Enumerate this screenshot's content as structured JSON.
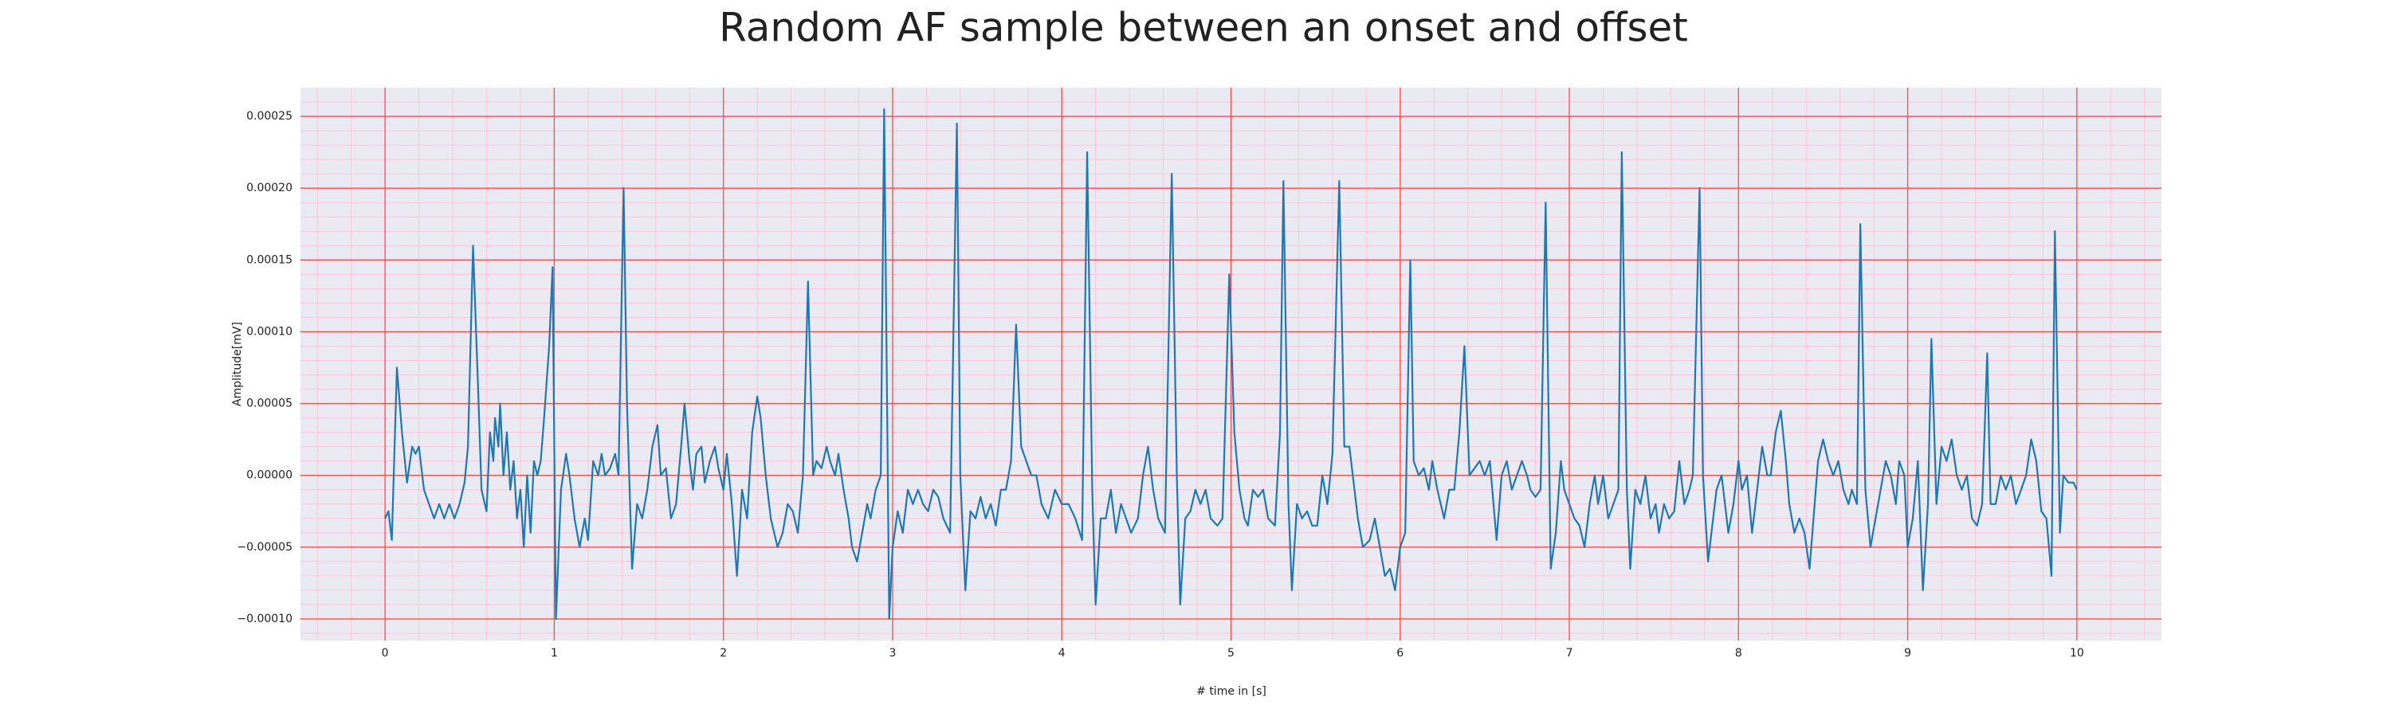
{
  "chart_data": {
    "type": "line",
    "title": "Random AF sample between an onset and offset",
    "xlabel": "# time in [s]",
    "ylabel": "Amplitude[mV]",
    "color": "#1f77b4",
    "background": "#eaeaf2",
    "grid": true,
    "grid_color": "#ff4a4a",
    "minor_grid": true,
    "minor_grid_color": "#ffc8d6",
    "xlim": [
      -0.5,
      10.5
    ],
    "xticks": [
      0,
      1,
      2,
      3,
      4,
      5,
      6,
      7,
      8,
      9,
      10
    ],
    "ylim": [
      -0.000115,
      0.00027
    ],
    "yticks": [
      {
        "value": -0.0001,
        "label": "−0.00010"
      },
      {
        "value": -5e-05,
        "label": "−0.00005"
      },
      {
        "value": 0,
        "label": "0.00000"
      },
      {
        "value": 5e-05,
        "label": "0.00005"
      },
      {
        "value": 0.0001,
        "label": "0.00010"
      },
      {
        "value": 0.00015,
        "label": "0.00015"
      },
      {
        "value": 0.0002,
        "label": "0.00020"
      },
      {
        "value": 0.00025,
        "label": "0.00025"
      }
    ],
    "xminorticks": [
      -0.4,
      -0.2,
      0.2,
      0.4,
      0.6,
      0.8,
      1.2,
      1.4,
      1.6,
      1.8,
      2.2,
      2.4,
      2.6,
      2.8,
      3.2,
      3.4,
      3.6,
      3.8,
      4.2,
      4.4,
      4.6,
      4.8,
      5.2,
      5.4,
      5.6,
      5.8,
      6.2,
      6.4,
      6.6,
      6.8,
      7.2,
      7.4,
      7.6,
      7.8,
      8.2,
      8.4,
      8.6,
      8.8,
      9.2,
      9.4,
      9.6,
      9.8,
      10.2,
      10.4
    ],
    "yminorticks": [
      -0.00011,
      -9e-05,
      -8e-05,
      -7e-05,
      -6e-05,
      -4e-05,
      -3e-05,
      -2e-05,
      -1e-05,
      1e-05,
      2e-05,
      3e-05,
      4e-05,
      6e-05,
      7e-05,
      8e-05,
      9e-05,
      0.00011,
      0.00012,
      0.00013,
      0.00014,
      0.00016,
      0.00017,
      0.00018,
      0.00019,
      0.00021,
      0.00022,
      0.00023,
      0.00024,
      0.00026
    ],
    "x": [
      0,
      0.02,
      0.04,
      0.07,
      0.1,
      0.13,
      0.16,
      0.18,
      0.2,
      0.23,
      0.26,
      0.29,
      0.32,
      0.35,
      0.38,
      0.41,
      0.44,
      0.47,
      0.49,
      0.52,
      0.55,
      0.57,
      0.6,
      0.62,
      0.64,
      0.65,
      0.67,
      0.68,
      0.7,
      0.72,
      0.74,
      0.76,
      0.78,
      0.8,
      0.82,
      0.84,
      0.86,
      0.88,
      0.9,
      0.92,
      0.94,
      0.97,
      0.99,
      1.01,
      1.04,
      1.07,
      1.09,
      1.12,
      1.15,
      1.18,
      1.2,
      1.23,
      1.26,
      1.28,
      1.3,
      1.33,
      1.36,
      1.38,
      1.41,
      1.43,
      1.46,
      1.49,
      1.52,
      1.55,
      1.58,
      1.61,
      1.63,
      1.66,
      1.69,
      1.72,
      1.75,
      1.77,
      1.8,
      1.82,
      1.84,
      1.87,
      1.89,
      1.92,
      1.95,
      1.97,
      2,
      2.02,
      2.05,
      2.08,
      2.11,
      2.14,
      2.17,
      2.2,
      2.22,
      2.25,
      2.28,
      2.32,
      2.35,
      2.38,
      2.41,
      2.44,
      2.47,
      2.5,
      2.53,
      2.55,
      2.58,
      2.61,
      2.63,
      2.66,
      2.68,
      2.71,
      2.74,
      2.76,
      2.79,
      2.82,
      2.85,
      2.87,
      2.9,
      2.93,
      2.95,
      2.98,
      3,
      3.03,
      3.06,
      3.09,
      3.12,
      3.15,
      3.18,
      3.21,
      3.24,
      3.27,
      3.3,
      3.34,
      3.38,
      3.4,
      3.43,
      3.46,
      3.49,
      3.52,
      3.55,
      3.58,
      3.61,
      3.64,
      3.67,
      3.7,
      3.73,
      3.76,
      3.79,
      3.82,
      3.85,
      3.88,
      3.92,
      3.96,
      4,
      4.04,
      4.08,
      4.12,
      4.15,
      4.18,
      4.2,
      4.23,
      4.26,
      4.29,
      4.32,
      4.35,
      4.38,
      4.41,
      4.45,
      4.48,
      4.51,
      4.54,
      4.57,
      4.61,
      4.65,
      4.68,
      4.7,
      4.73,
      4.76,
      4.79,
      4.82,
      4.85,
      4.88,
      4.92,
      4.95,
      4.99,
      5.02,
      5.05,
      5.08,
      5.1,
      5.13,
      5.16,
      5.19,
      5.22,
      5.26,
      5.29,
      5.31,
      5.34,
      5.36,
      5.39,
      5.42,
      5.45,
      5.48,
      5.51,
      5.54,
      5.57,
      5.6,
      5.64,
      5.67,
      5.7,
      5.72,
      5.75,
      5.78,
      5.82,
      5.85,
      5.88,
      5.91,
      5.94,
      5.97,
      6,
      6.03,
      6.06,
      6.08,
      6.11,
      6.14,
      6.17,
      6.19,
      6.22,
      6.26,
      6.29,
      6.32,
      6.35,
      6.38,
      6.41,
      6.44,
      6.47,
      6.5,
      6.53,
      6.57,
      6.6,
      6.63,
      6.66,
      6.69,
      6.72,
      6.75,
      6.77,
      6.8,
      6.83,
      6.86,
      6.89,
      6.92,
      6.95,
      6.97,
      7,
      7.03,
      7.06,
      7.09,
      7.12,
      7.15,
      7.17,
      7.2,
      7.23,
      7.26,
      7.29,
      7.31,
      7.34,
      7.36,
      7.39,
      7.42,
      7.45,
      7.48,
      7.51,
      7.53,
      7.56,
      7.59,
      7.62,
      7.65,
      7.68,
      7.71,
      7.73,
      7.77,
      7.79,
      7.82,
      7.84,
      7.87,
      7.9,
      7.94,
      7.97,
      8,
      8.02,
      8.05,
      8.08,
      8.11,
      8.14,
      8.17,
      8.19,
      8.22,
      8.25,
      8.28,
      8.3,
      8.33,
      8.36,
      8.39,
      8.42,
      8.45,
      8.47,
      8.5,
      8.53,
      8.56,
      8.59,
      8.62,
      8.65,
      8.67,
      8.7,
      8.72,
      8.75,
      8.78,
      8.81,
      8.84,
      8.87,
      8.9,
      8.93,
      8.95,
      8.98,
      9,
      9.03,
      9.06,
      9.09,
      9.12,
      9.14,
      9.17,
      9.2,
      9.23,
      9.26,
      9.29,
      9.32,
      9.35,
      9.38,
      9.41,
      9.44,
      9.47,
      9.49,
      9.52,
      9.55,
      9.58,
      9.61,
      9.64,
      9.67,
      9.7,
      9.73,
      9.76,
      9.79,
      9.82,
      9.85,
      9.87,
      9.9,
      9.92,
      9.95,
      9.98,
      10
    ],
    "values": [
      -3e-05,
      -2.5e-05,
      -4.5e-05,
      7.5e-05,
      3e-05,
      -5e-06,
      2e-05,
      1.5e-05,
      2e-05,
      -1e-05,
      -2e-05,
      -3e-05,
      -2e-05,
      -3e-05,
      -2e-05,
      -3e-05,
      -2e-05,
      -5e-06,
      2e-05,
      0.00016,
      6e-05,
      -1e-05,
      -2.5e-05,
      3e-05,
      1e-05,
      4e-05,
      2e-05,
      5e-05,
      0,
      3e-05,
      -1e-05,
      1e-05,
      -3e-05,
      -1e-05,
      -5e-05,
      0,
      -4e-05,
      1e-05,
      0,
      1e-05,
      4e-05,
      9e-05,
      0.000145,
      -0.0001,
      -1e-05,
      1.5e-05,
      0,
      -3e-05,
      -5e-05,
      -3e-05,
      -4.5e-05,
      1e-05,
      0,
      1.5e-05,
      0,
      5e-06,
      1.5e-05,
      0,
      0.0002,
      5e-05,
      -6.5e-05,
      -2e-05,
      -3e-05,
      -1e-05,
      2e-05,
      3.5e-05,
      0,
      5e-06,
      -3e-05,
      -2e-05,
      2e-05,
      5e-05,
      1e-05,
      -1e-05,
      1.5e-05,
      2e-05,
      -5e-06,
      1e-05,
      2e-05,
      5e-06,
      -1e-05,
      1.5e-05,
      -2e-05,
      -7e-05,
      -1e-05,
      -3e-05,
      3e-05,
      5.5e-05,
      4e-05,
      0,
      -3e-05,
      -5e-05,
      -4e-05,
      -2e-05,
      -2.5e-05,
      -4e-05,
      0,
      0.000135,
      0,
      1e-05,
      5e-06,
      2e-05,
      1e-05,
      0,
      1.5e-05,
      -1e-05,
      -3e-05,
      -5e-05,
      -6e-05,
      -4e-05,
      -2e-05,
      -3e-05,
      -1e-05,
      0,
      0.000255,
      -0.0001,
      -5e-05,
      -2.5e-05,
      -4e-05,
      -1e-05,
      -2e-05,
      -1e-05,
      -2e-05,
      -2.5e-05,
      -1e-05,
      -1.5e-05,
      -3e-05,
      -4e-05,
      0.000245,
      0,
      -8e-05,
      -2.5e-05,
      -3e-05,
      -1.5e-05,
      -3e-05,
      -2e-05,
      -3.5e-05,
      -1e-05,
      -1e-05,
      1e-05,
      0.000105,
      2e-05,
      1e-05,
      0,
      0,
      -2e-05,
      -3e-05,
      -1e-05,
      -2e-05,
      -2e-05,
      -3e-05,
      -4.5e-05,
      0.000225,
      -1e-05,
      -9e-05,
      -3e-05,
      -3e-05,
      -1e-05,
      -4e-05,
      -2e-05,
      -3e-05,
      -4e-05,
      -3e-05,
      0,
      2e-05,
      -1e-05,
      -3e-05,
      -4e-05,
      0.00021,
      0,
      -9e-05,
      -3e-05,
      -2.5e-05,
      -1e-05,
      -2e-05,
      -1e-05,
      -3e-05,
      -3.5e-05,
      -3e-05,
      0.00014,
      3e-05,
      -1e-05,
      -3e-05,
      -3.5e-05,
      -1e-05,
      -1.5e-05,
      -1e-05,
      -3e-05,
      -3.5e-05,
      3e-05,
      0.000205,
      -2e-05,
      -8e-05,
      -2e-05,
      -3e-05,
      -2.5e-05,
      -3.5e-05,
      -3.5e-05,
      0,
      -2e-05,
      1.5e-05,
      0.000205,
      2e-05,
      2e-05,
      0,
      -3e-05,
      -5e-05,
      -4.5e-05,
      -3e-05,
      -5e-05,
      -7e-05,
      -6.5e-05,
      -8e-05,
      -5e-05,
      -4e-05,
      0.00015,
      1e-05,
      0,
      5e-06,
      -1e-05,
      1e-05,
      -1e-05,
      -3e-05,
      -1e-05,
      -1e-05,
      3e-05,
      9e-05,
      0,
      5e-06,
      1e-05,
      0,
      1e-05,
      -4.5e-05,
      0,
      1e-05,
      -1e-05,
      0,
      1e-05,
      0,
      -1e-05,
      -1.5e-05,
      -1e-05,
      0.00019,
      -6.5e-05,
      -4e-05,
      1e-05,
      -1e-05,
      -2e-05,
      -3e-05,
      -3.5e-05,
      -5e-05,
      -2e-05,
      0,
      -2e-05,
      0,
      -3e-05,
      -2e-05,
      -1e-05,
      0.000225,
      -1e-05,
      -6.5e-05,
      -1e-05,
      -2e-05,
      0,
      -3e-05,
      -2e-05,
      -4e-05,
      -2e-05,
      -3e-05,
      -2.5e-05,
      1e-05,
      -2e-05,
      -1e-05,
      0,
      0.0002,
      0,
      -6e-05,
      -4e-05,
      -1e-05,
      0,
      -4e-05,
      -2e-05,
      1e-05,
      -1e-05,
      0,
      -4e-05,
      -1e-05,
      2e-05,
      0,
      0,
      3e-05,
      4.5e-05,
      1e-05,
      -2e-05,
      -4e-05,
      -3e-05,
      -4e-05,
      -6.5e-05,
      -2e-05,
      1e-05,
      2.5e-05,
      1e-05,
      0,
      1e-05,
      -1e-05,
      -2e-05,
      -1e-05,
      -2e-05,
      0.000175,
      -1e-05,
      -5e-05,
      -3e-05,
      -1e-05,
      1e-05,
      0,
      -2e-05,
      1e-05,
      0,
      -5e-05,
      -3e-05,
      1e-05,
      -8e-05,
      -2e-05,
      9.5e-05,
      -2e-05,
      2e-05,
      1e-05,
      2.5e-05,
      0,
      -1e-05,
      0,
      -3e-05,
      -3.5e-05,
      -2e-05,
      8.5e-05,
      -2e-05,
      -2e-05,
      0,
      -1e-05,
      0,
      -2e-05,
      -1e-05,
      0,
      2.5e-05,
      1e-05,
      -2.5e-05,
      -3e-05,
      -7e-05,
      0.00017,
      -4e-05,
      0,
      -5e-06,
      -5e-06,
      -1e-05
    ]
  }
}
